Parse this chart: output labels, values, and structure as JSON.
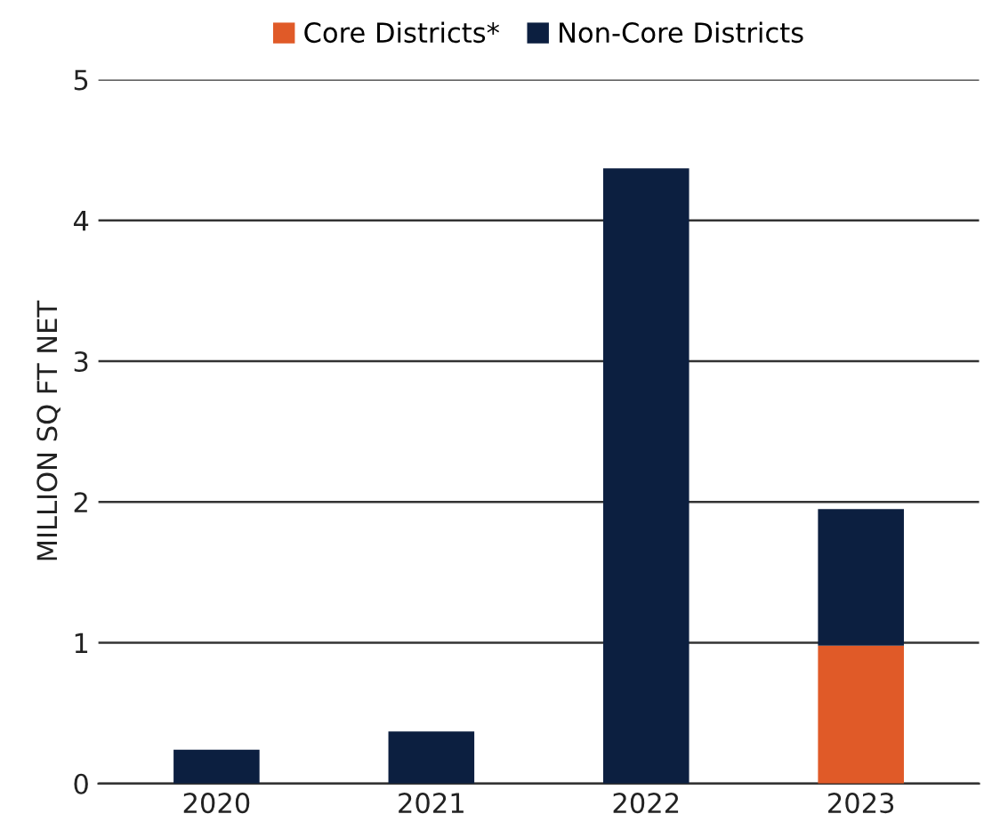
{
  "chart_data": {
    "type": "bar",
    "stacked": true,
    "ylabel": "MILLION SQ FT NET",
    "categories": [
      "2020",
      "2021",
      "2022",
      "2023"
    ],
    "series": [
      {
        "name": "Core Districts*",
        "color": "#e05a28",
        "values": [
          0,
          0,
          0,
          0.98
        ]
      },
      {
        "name": "Non-Core Districts",
        "color": "#0c1f40",
        "values": [
          0.24,
          0.37,
          4.37,
          0.97
        ]
      }
    ],
    "ylim": [
      0,
      5
    ],
    "yticks": [
      0,
      1,
      2,
      3,
      4,
      5
    ],
    "grid": "y",
    "legend": "top"
  }
}
